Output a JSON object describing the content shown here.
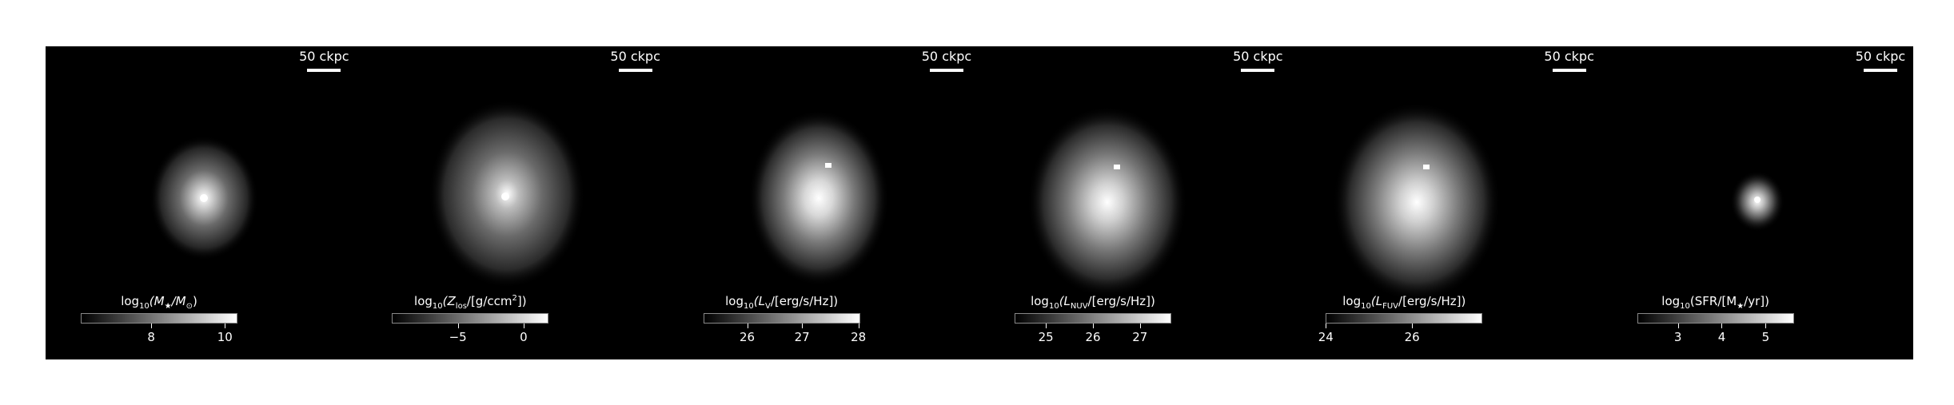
{
  "scale_bar_label": "50 ckpc",
  "panels": [
    {
      "colorbar": {
        "pre": "log",
        "sub": "10",
        "mid": "(M",
        "sub2": "★",
        "mid2": "/M",
        "sub3": "⊙",
        "post": ")"
      },
      "ticks": [
        "8",
        "10"
      ],
      "tick_positions_pct": [
        45,
        92
      ]
    },
    {
      "colorbar": {
        "pre": "log",
        "sub": "10",
        "mid": "(Z",
        "sub2": "los",
        "mid2": "/[g/ccm",
        "sup": "2",
        "post": "])"
      },
      "ticks": [
        "−5",
        "0"
      ],
      "tick_positions_pct": [
        42,
        84
      ]
    },
    {
      "colorbar": {
        "pre": "log",
        "sub": "10",
        "mid": "(L",
        "sub2": "V",
        "mid2": "/[erg/s/Hz])",
        "post": ""
      },
      "ticks": [
        "26",
        "27",
        "28"
      ],
      "tick_positions_pct": [
        28,
        63,
        99
      ]
    },
    {
      "colorbar": {
        "pre": "log",
        "sub": "10",
        "mid": "(L",
        "sub2": "NUV",
        "mid2": "/[erg/s/Hz])",
        "post": ""
      },
      "ticks": [
        "25",
        "26",
        "27"
      ],
      "tick_positions_pct": [
        20,
        50,
        80
      ]
    },
    {
      "colorbar": {
        "pre": "log",
        "sub": "10",
        "mid": "(L",
        "sub2": "FUV",
        "mid2": "/[erg/s/Hz])",
        "post": ""
      },
      "ticks": [
        "24",
        "26"
      ],
      "tick_positions_pct": [
        0,
        55
      ]
    },
    {
      "colorbar": {
        "pre": "log",
        "sub": "10",
        "mid": "(SFR/[M",
        "sub2": "★",
        "mid2": "/yr])",
        "post": ""
      },
      "ticks": [
        "3",
        "4",
        "5"
      ],
      "tick_positions_pct": [
        26,
        54,
        82
      ]
    }
  ]
}
